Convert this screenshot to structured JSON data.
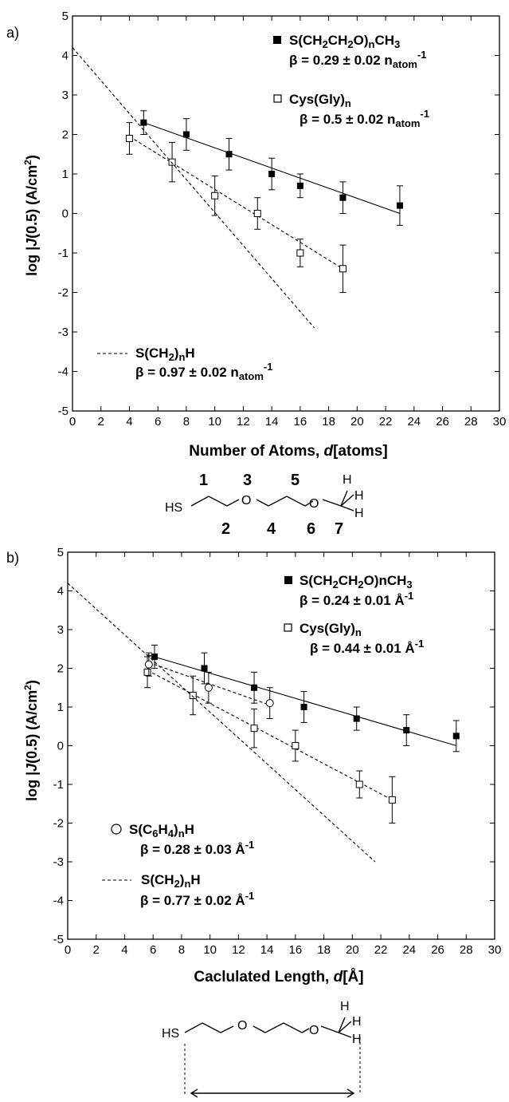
{
  "panel_labels": [
    "a)",
    "b)"
  ],
  "chart_data": [
    {
      "type": "scatter",
      "panel": "a)",
      "xlabel": "Number of Atoms, d[atoms]",
      "ylabel": "log |J(0.5) (A/cm2)",
      "xlim": [
        0,
        30
      ],
      "ylim": [
        -5,
        5
      ],
      "x_ticks": [
        0,
        2,
        4,
        6,
        8,
        10,
        12,
        14,
        16,
        18,
        20,
        22,
        24,
        26,
        28,
        30
      ],
      "y_ticks": [
        -5,
        -4,
        -3,
        -2,
        -1,
        0,
        1,
        2,
        3,
        4,
        5
      ],
      "series": [
        {
          "name": "S(CH2CH2O)nCH3",
          "beta": "β = 0.29 ± 0.02 natom-1",
          "marker": "filled-square",
          "points": [
            [
              5,
              2.3,
              0.3
            ],
            [
              8,
              2.0,
              0.4
            ],
            [
              11,
              1.5,
              0.4
            ],
            [
              14,
              1.0,
              0.4
            ],
            [
              16,
              0.7,
              0.3
            ],
            [
              19,
              0.4,
              0.4
            ],
            [
              23,
              0.2,
              0.5
            ]
          ],
          "fit": [
            [
              5,
              2.3
            ],
            [
              23,
              0.0
            ]
          ]
        },
        {
          "name": "Cys(Gly)n",
          "beta": "β = 0.5 ± 0.02 natom-1",
          "marker": "open-square",
          "points": [
            [
              4,
              1.9,
              0.4
            ],
            [
              7,
              1.3,
              0.5
            ],
            [
              10,
              0.45,
              0.5
            ],
            [
              13,
              0.0,
              0.4
            ],
            [
              16,
              -1.0,
              0.35
            ],
            [
              19,
              -1.4,
              0.6
            ]
          ],
          "fit": [
            [
              4,
              1.95
            ],
            [
              19,
              -1.4
            ]
          ]
        },
        {
          "name": "S(CH2)nH",
          "beta": "β = 0.97 ± 0.02 natom-1",
          "marker": "dashed-line",
          "points": [],
          "fit": [
            [
              0,
              4.2
            ],
            [
              17,
              -2.9
            ]
          ]
        }
      ]
    },
    {
      "type": "scatter",
      "panel": "b)",
      "xlabel": "Caclulated Length, d[Å]",
      "ylabel": "log |J(0.5) (A/cm2)",
      "xlim": [
        0,
        30
      ],
      "ylim": [
        -5,
        5
      ],
      "x_ticks": [
        0,
        2,
        4,
        6,
        8,
        10,
        12,
        14,
        16,
        18,
        20,
        22,
        24,
        26,
        28,
        30
      ],
      "y_ticks": [
        -5,
        -4,
        -3,
        -2,
        -1,
        0,
        1,
        2,
        3,
        4,
        5
      ],
      "series": [
        {
          "name": "S(CH2CH2O)nCH3",
          "beta": "β = 0.24 ± 0.01 Å-1",
          "marker": "filled-square",
          "points": [
            [
              6.1,
              2.3,
              0.3
            ],
            [
              9.6,
              2.0,
              0.4
            ],
            [
              13.1,
              1.5,
              0.4
            ],
            [
              16.6,
              1.0,
              0.4
            ],
            [
              20.3,
              0.7,
              0.3
            ],
            [
              23.8,
              0.4,
              0.4
            ],
            [
              27.3,
              0.25,
              0.4
            ]
          ],
          "fit": [
            [
              5.6,
              2.35
            ],
            [
              27.3,
              0.0
            ]
          ]
        },
        {
          "name": "Cys(Gly)n",
          "beta": "β = 0.44 ± 0.01 Å-1",
          "marker": "open-square",
          "points": [
            [
              5.6,
              1.9,
              0.4
            ],
            [
              8.8,
              1.3,
              0.5
            ],
            [
              13.1,
              0.45,
              0.5
            ],
            [
              16.0,
              0.0,
              0.4
            ],
            [
              20.5,
              -1.0,
              0.35
            ],
            [
              22.8,
              -1.4,
              0.6
            ]
          ],
          "fit": [
            [
              5.6,
              1.95
            ],
            [
              22.8,
              -1.4
            ]
          ]
        },
        {
          "name": "S(C6H4)nH",
          "beta": "β = 0.28 ± 0.03 Å-1",
          "marker": "open-circle",
          "points": [
            [
              5.7,
              2.1,
              0.3
            ],
            [
              9.9,
              1.5,
              0.4
            ],
            [
              14.2,
              1.1,
              0.4
            ]
          ],
          "fit": [
            [
              5.7,
              2.15
            ],
            [
              14.2,
              1.05
            ]
          ]
        },
        {
          "name": "S(CH2)nH",
          "beta": "β = 0.77 ± 0.02 Å-1",
          "marker": "dashed-line",
          "points": [],
          "fit": [
            [
              0,
              4.2
            ],
            [
              21.6,
              -3.0
            ]
          ]
        }
      ]
    }
  ],
  "structure_a": {
    "top_numbers": [
      "1",
      "3",
      "5"
    ],
    "bottom_numbers": [
      "2",
      "4",
      "6",
      "7"
    ],
    "atoms": {
      "hs": "HS",
      "o1": "O",
      "o2": "O",
      "h_top": "H",
      "h_right1": "H",
      "h_right2": "H"
    }
  },
  "structure_b": {
    "atoms": {
      "hs": "HS",
      "o1": "O",
      "o2": "O",
      "h_top": "H",
      "h_right1": "H",
      "h_right2": "H"
    }
  }
}
